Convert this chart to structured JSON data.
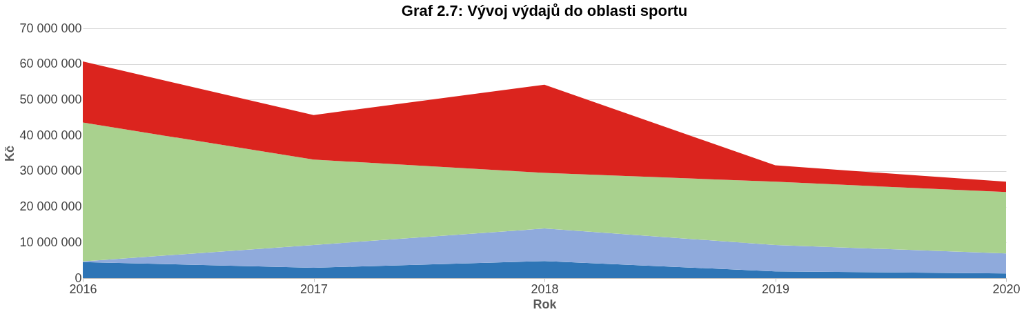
{
  "chart_data": {
    "type": "area",
    "stacked": true,
    "title": "Graf 2.7: Vývoj výdajů do oblasti sportu",
    "xlabel": "Rok",
    "ylabel": "Kč",
    "x": [
      2016,
      2017,
      2018,
      2019,
      2020
    ],
    "xlim": [
      2016,
      2020
    ],
    "xticks": [
      2016,
      2017,
      2018,
      2019,
      2020
    ],
    "ylim": [
      0,
      70000000
    ],
    "yticks": [
      {
        "value": 0,
        "label": "0"
      },
      {
        "value": 10000000,
        "label": "10 000 000"
      },
      {
        "value": 20000000,
        "label": "20 000 000"
      },
      {
        "value": 30000000,
        "label": "30 000 000"
      },
      {
        "value": 40000000,
        "label": "40 000 000"
      },
      {
        "value": 50000000,
        "label": "50 000 000"
      },
      {
        "value": 60000000,
        "label": "60 000 000"
      },
      {
        "value": 70000000,
        "label": "70 000 000"
      }
    ],
    "grid": "y",
    "series": [
      {
        "color": "#2e75b6",
        "values": [
          4500000,
          2900000,
          4800000,
          1900000,
          1300000
        ]
      },
      {
        "color": "#8faadc",
        "values": [
          200000,
          6400000,
          9100000,
          7400000,
          5600000
        ]
      },
      {
        "color": "#a9d18e",
        "values": [
          38900000,
          23900000,
          15600000,
          17700000,
          17200000
        ]
      },
      {
        "color": "#db241e",
        "values": [
          17100000,
          12500000,
          24700000,
          4600000,
          2900000
        ]
      }
    ]
  }
}
